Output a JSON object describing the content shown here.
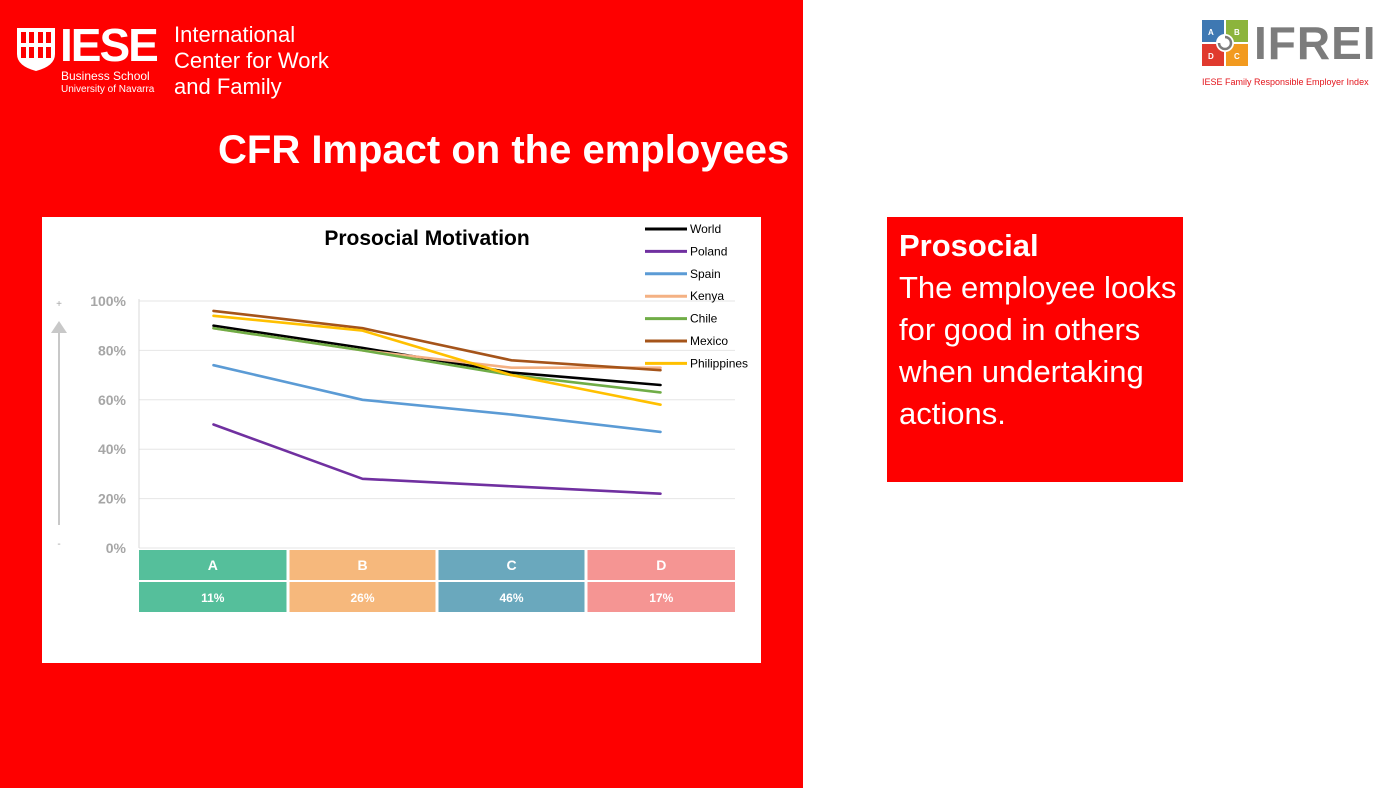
{
  "header": {
    "logo_word": "IESE",
    "school_line1": "Business School",
    "school_line2": "University of Navarra",
    "center_line1": "International",
    "center_line2": "Center for Work",
    "center_line3": "and Family",
    "ifrei_word": "IFREI",
    "ifrei_tagline": "IESE Family Responsible Employer Index",
    "ifrei_tile_letters": [
      "A",
      "B",
      "D",
      "C"
    ]
  },
  "slide_title": "CFR Impact on the employees",
  "definition": {
    "title": "Prosocial",
    "text": "The employee looks for good in others when undertaking actions."
  },
  "chart_data": {
    "type": "line",
    "title": "Prosocial Motivation",
    "xlabel": "",
    "ylabel": "",
    "y_axis_top_marker": "+",
    "y_axis_bottom_marker": "-",
    "ylim": [
      0,
      100
    ],
    "yticks": [
      "0%",
      "20%",
      "40%",
      "60%",
      "80%",
      "100%"
    ],
    "grid": true,
    "legend_position": "top-right",
    "categories": [
      "A",
      "B",
      "C",
      "D"
    ],
    "category_shares": [
      "11%",
      "26%",
      "46%",
      "17%"
    ],
    "category_colors": [
      "#55bf9b",
      "#f6b87c",
      "#6aa8bd",
      "#f59593"
    ],
    "series": [
      {
        "name": "World",
        "color": "#000000",
        "values": [
          90,
          81,
          71,
          66
        ]
      },
      {
        "name": "Poland",
        "color": "#7030a0",
        "values": [
          50,
          28,
          25,
          22
        ]
      },
      {
        "name": "Spain",
        "color": "#5b9bd5",
        "values": [
          74,
          60,
          54,
          47
        ]
      },
      {
        "name": "Kenya",
        "color": "#f4b183",
        "values": [
          89,
          80,
          73,
          73
        ]
      },
      {
        "name": "Chile",
        "color": "#70ad47",
        "values": [
          89,
          80,
          70,
          63
        ]
      },
      {
        "name": "Mexico",
        "color": "#a5541a",
        "values": [
          96,
          89,
          76,
          72
        ]
      },
      {
        "name": "Philippines",
        "color": "#ffc000",
        "values": [
          94,
          88,
          70,
          58
        ]
      }
    ]
  }
}
